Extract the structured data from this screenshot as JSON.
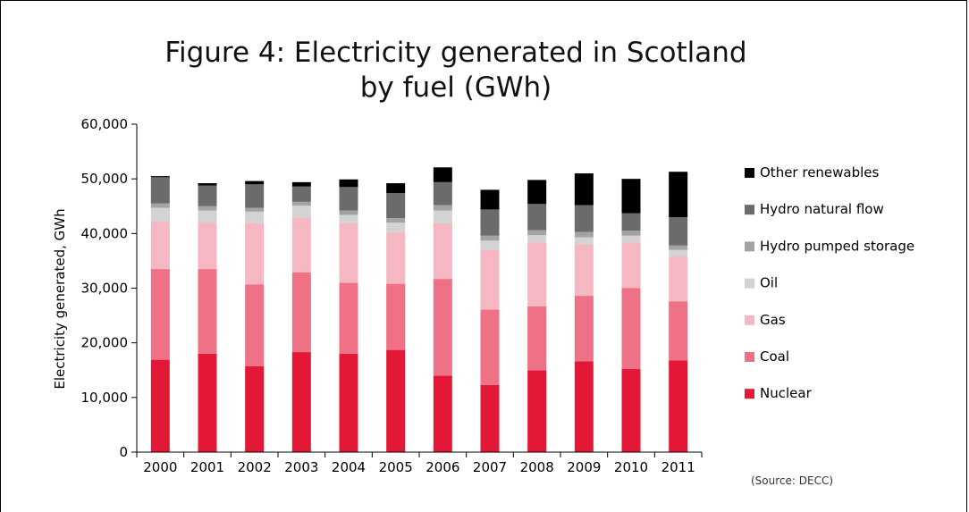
{
  "title": "Figure 4: Electricity generated in Scotland\nby fuel (GWh)",
  "source": "(Source: DECC)",
  "chart_data": {
    "type": "bar",
    "stacked": true,
    "title": "Figure 4: Electricity generated in Scotland by fuel (GWh)",
    "ylabel": "Electricity generated, GWh",
    "xlabel": "",
    "ylim": [
      0,
      60000
    ],
    "yticks": [
      0,
      10000,
      20000,
      30000,
      40000,
      50000,
      60000
    ],
    "ytick_labels": [
      "0",
      "10,000",
      "20,000",
      "30,000",
      "40,000",
      "50,000",
      "60,000"
    ],
    "grid": false,
    "legend_position": "right",
    "categories": [
      "2000",
      "2001",
      "2002",
      "2003",
      "2004",
      "2005",
      "2006",
      "2007",
      "2008",
      "2009",
      "2010",
      "2011"
    ],
    "series": [
      {
        "name": "Nuclear",
        "color": "#e31837",
        "values": [
          16900,
          18000,
          15700,
          18300,
          18000,
          18700,
          14000,
          12300,
          15000,
          16600,
          15200,
          16800
        ]
      },
      {
        "name": "Coal",
        "color": "#ef7185",
        "values": [
          16600,
          15500,
          15000,
          14600,
          13000,
          12100,
          17700,
          13800,
          11700,
          12000,
          14800,
          10800
        ]
      },
      {
        "name": "Gas",
        "color": "#f5b8c2",
        "values": [
          8700,
          8500,
          11200,
          10000,
          10900,
          9400,
          10200,
          10900,
          11700,
          9400,
          8400,
          8200
        ]
      },
      {
        "name": "Oil",
        "color": "#d3d3d3",
        "values": [
          2500,
          2200,
          2100,
          2200,
          1500,
          1800,
          2300,
          1700,
          1300,
          1300,
          1200,
          1200
        ]
      },
      {
        "name": "Hydro pumped storage",
        "color": "#a3a3a3",
        "values": [
          800,
          800,
          700,
          700,
          800,
          800,
          1000,
          900,
          900,
          1000,
          900,
          800
        ]
      },
      {
        "name": "Hydro natural flow",
        "color": "#6b6b6b",
        "values": [
          4800,
          3800,
          4300,
          2800,
          4300,
          4600,
          4200,
          4800,
          4800,
          4900,
          3200,
          5200
        ]
      },
      {
        "name": "Other renewables",
        "color": "#000000",
        "values": [
          200,
          400,
          600,
          800,
          1400,
          1800,
          2700,
          3600,
          4400,
          5800,
          6300,
          8300
        ]
      }
    ]
  }
}
